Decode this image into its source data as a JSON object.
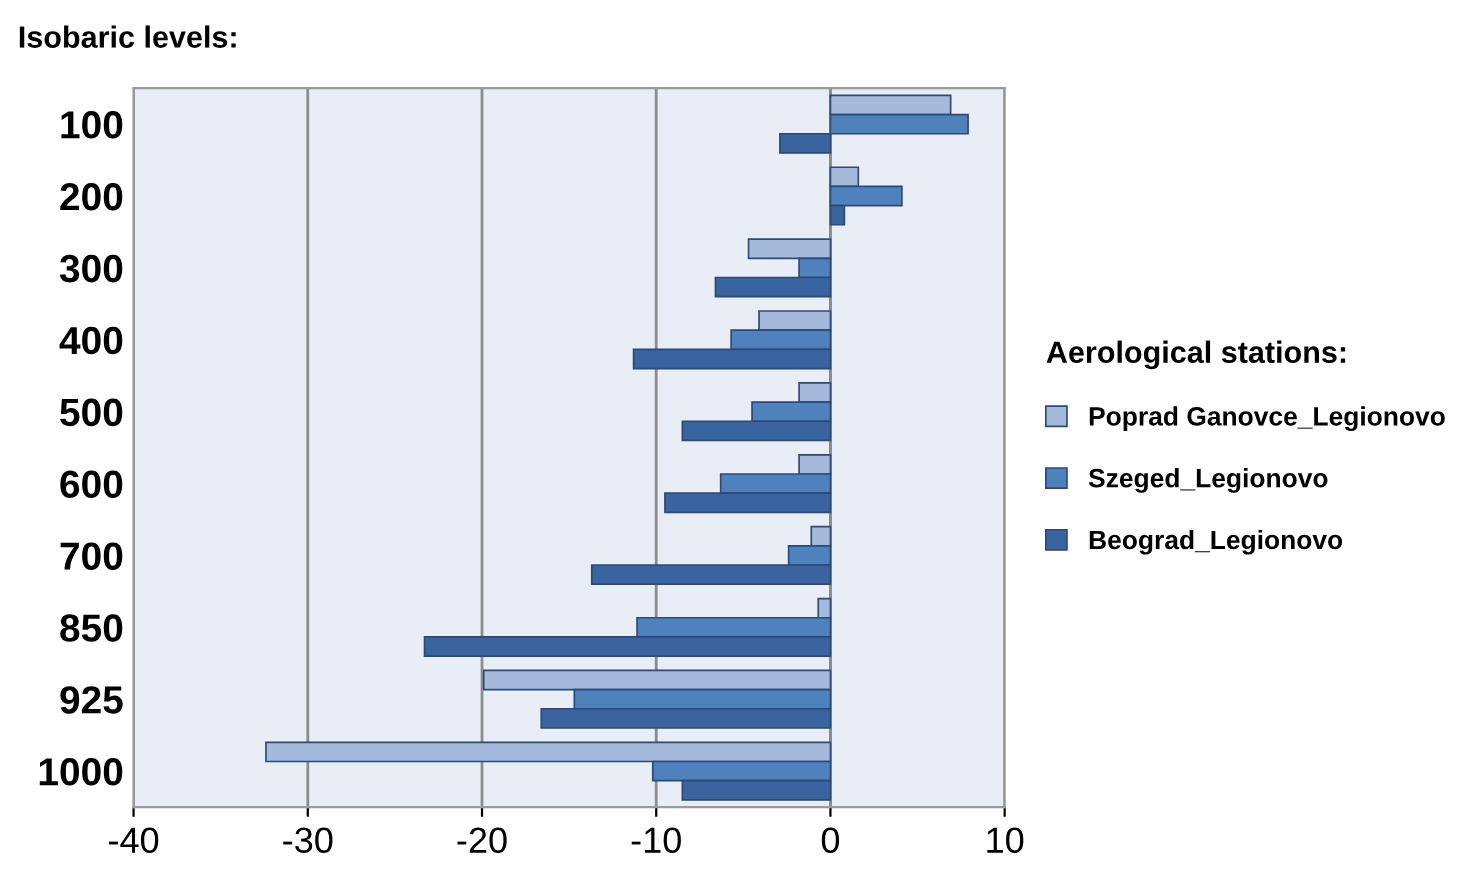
{
  "chart_data": {
    "type": "bar",
    "orientation": "horizontal",
    "title": "Isobaric levels:",
    "legend_title": "Aerological stations:",
    "categories": [
      "100",
      "200",
      "300",
      "400",
      "500",
      "600",
      "700",
      "850",
      "925",
      "1000"
    ],
    "series": [
      {
        "name": "Poprad Ganovce_Legionovo",
        "color": "#a5b9dc",
        "values": [
          6.9,
          1.6,
          -4.7,
          -4.1,
          -1.8,
          -1.8,
          -1.1,
          -0.7,
          -19.9,
          -32.4
        ]
      },
      {
        "name": "Szeged_Legionovo",
        "color": "#4f81bd",
        "values": [
          7.9,
          4.1,
          -1.8,
          -5.7,
          -4.5,
          -6.3,
          -2.4,
          -11.1,
          -14.7,
          -10.2
        ]
      },
      {
        "name": "Beograd_Legionovo",
        "color": "#3a64a0",
        "values": [
          -2.9,
          0.8,
          -6.6,
          -11.3,
          -8.5,
          -9.5,
          -13.7,
          -23.3,
          -16.6,
          -8.5
        ]
      }
    ],
    "xlim": [
      -40,
      10
    ],
    "xticks": [
      -40,
      -30,
      -20,
      -10,
      0,
      10
    ],
    "grid": "x",
    "legend": "right"
  }
}
